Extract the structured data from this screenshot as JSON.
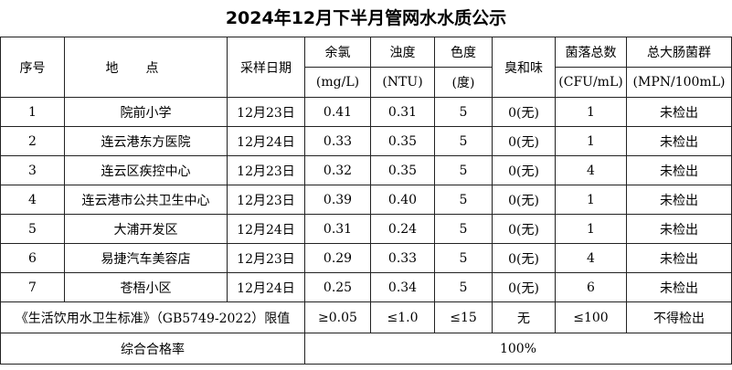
{
  "title": "2024年12月下半月管网水水质公示",
  "header": {
    "top": [
      "序号",
      "地点",
      "采样日期",
      "余氯",
      "浊度",
      "色度",
      "臭和味",
      "菌落总数",
      "总大肠菌群"
    ],
    "units": [
      "(mg/L)",
      "(NTU)",
      "(度)",
      "(CFU/mL)",
      "(MPN/100mL)"
    ]
  },
  "rows": [
    [
      "1",
      "院前小学",
      "12月23日",
      "0.41",
      "0.31",
      "5",
      "0(无)",
      "1",
      "未检出"
    ],
    [
      "2",
      "连云港东方医院",
      "12月24日",
      "0.33",
      "0.35",
      "5",
      "0(无)",
      "1",
      "未检出"
    ],
    [
      "3",
      "连云区疾控中心",
      "12月23日",
      "0.32",
      "0.35",
      "5",
      "0(无)",
      "4",
      "未检出"
    ],
    [
      "4",
      "连云港市公共卫生中心",
      "12月23日",
      "0.39",
      "0.40",
      "5",
      "0(无)",
      "1",
      "未检出"
    ],
    [
      "5",
      "大浦开发区",
      "12月24日",
      "0.31",
      "0.24",
      "5",
      "0(无)",
      "1",
      "未检出"
    ],
    [
      "6",
      "易捷汽车美容店",
      "12月23日",
      "0.29",
      "0.33",
      "5",
      "0(无)",
      "4",
      "未检出"
    ],
    [
      "7",
      "苍梧小区",
      "12月24日",
      "0.25",
      "0.34",
      "5",
      "0(无)",
      "6",
      "未检出"
    ]
  ],
  "standard": {
    "label": "《生活饮用水卫生标准》（GB5749-2022）限值",
    "values": [
      "≥0.05",
      "≤1.0",
      "≤15",
      "无",
      "≤100",
      "不得检出"
    ]
  },
  "pass_rate": {
    "label": "综合合格率",
    "value": "100%"
  }
}
